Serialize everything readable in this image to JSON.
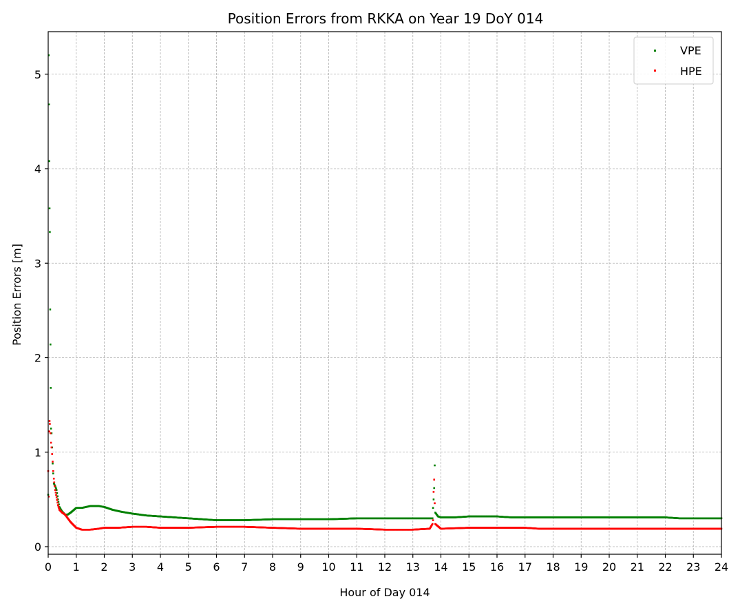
{
  "chart_data": {
    "type": "scatter",
    "title": "Position Errors from RKKA on Year 19 DoY 014",
    "xlabel": "Hour of Day 014",
    "ylabel": "Position Errors [m]",
    "xlim": [
      0,
      24
    ],
    "ylim": [
      -0.08,
      5.45
    ],
    "x_ticks": [
      0,
      1,
      2,
      3,
      4,
      5,
      6,
      7,
      8,
      9,
      10,
      11,
      12,
      13,
      14,
      15,
      16,
      17,
      18,
      19,
      20,
      21,
      22,
      23,
      24
    ],
    "y_ticks": [
      0,
      1,
      2,
      3,
      4,
      5
    ],
    "grid": true,
    "legend_position": "top-right",
    "series": [
      {
        "name": "VPE",
        "color": "#008000",
        "points": [
          [
            0.0,
            0.55
          ],
          [
            0.02,
            5.2
          ],
          [
            0.03,
            4.68
          ],
          [
            0.04,
            4.08
          ],
          [
            0.05,
            3.58
          ],
          [
            0.06,
            3.33
          ],
          [
            0.07,
            2.51
          ],
          [
            0.08,
            2.14
          ],
          [
            0.09,
            1.68
          ],
          [
            0.1,
            1.25
          ],
          [
            0.12,
            1.2
          ],
          [
            0.14,
            1.05
          ],
          [
            0.16,
            0.88
          ],
          [
            0.2,
            0.67
          ],
          [
            0.25,
            0.64
          ],
          [
            0.3,
            0.6
          ],
          [
            0.35,
            0.5
          ],
          [
            0.4,
            0.42
          ],
          [
            0.5,
            0.37
          ],
          [
            0.6,
            0.34
          ],
          [
            0.7,
            0.34
          ],
          [
            0.8,
            0.36
          ],
          [
            1.0,
            0.41
          ],
          [
            1.2,
            0.41
          ],
          [
            1.5,
            0.43
          ],
          [
            1.8,
            0.43
          ],
          [
            2.0,
            0.42
          ],
          [
            2.3,
            0.39
          ],
          [
            2.6,
            0.37
          ],
          [
            3.0,
            0.35
          ],
          [
            3.5,
            0.33
          ],
          [
            4.0,
            0.32
          ],
          [
            4.5,
            0.31
          ],
          [
            5.0,
            0.3
          ],
          [
            5.5,
            0.29
          ],
          [
            6.0,
            0.28
          ],
          [
            7.0,
            0.28
          ],
          [
            8.0,
            0.29
          ],
          [
            9.0,
            0.29
          ],
          [
            10.0,
            0.29
          ],
          [
            11.0,
            0.3
          ],
          [
            12.0,
            0.3
          ],
          [
            13.0,
            0.3
          ],
          [
            13.5,
            0.3
          ],
          [
            13.7,
            0.3
          ],
          [
            13.72,
            0.41
          ],
          [
            13.74,
            0.5
          ],
          [
            13.76,
            0.62
          ],
          [
            13.78,
            0.86
          ],
          [
            13.8,
            0.36
          ],
          [
            13.9,
            0.32
          ],
          [
            14.0,
            0.31
          ],
          [
            14.5,
            0.31
          ],
          [
            15.0,
            0.32
          ],
          [
            15.5,
            0.32
          ],
          [
            16.0,
            0.32
          ],
          [
            16.5,
            0.31
          ],
          [
            17.0,
            0.31
          ],
          [
            18.0,
            0.31
          ],
          [
            19.0,
            0.31
          ],
          [
            20.0,
            0.31
          ],
          [
            21.0,
            0.31
          ],
          [
            22.0,
            0.31
          ],
          [
            22.5,
            0.3
          ],
          [
            23.0,
            0.3
          ],
          [
            24.0,
            0.3
          ]
        ]
      },
      {
        "name": "HPE",
        "color": "#ff0000",
        "points": [
          [
            0.0,
            0.8
          ],
          [
            0.02,
            0.53
          ],
          [
            0.04,
            1.22
          ],
          [
            0.05,
            1.33
          ],
          [
            0.06,
            1.3
          ],
          [
            0.08,
            1.2
          ],
          [
            0.1,
            1.1
          ],
          [
            0.12,
            1.05
          ],
          [
            0.14,
            0.98
          ],
          [
            0.16,
            0.9
          ],
          [
            0.18,
            0.8
          ],
          [
            0.2,
            0.72
          ],
          [
            0.25,
            0.6
          ],
          [
            0.3,
            0.52
          ],
          [
            0.35,
            0.44
          ],
          [
            0.4,
            0.39
          ],
          [
            0.5,
            0.36
          ],
          [
            0.6,
            0.34
          ],
          [
            0.7,
            0.3
          ],
          [
            0.8,
            0.26
          ],
          [
            0.9,
            0.23
          ],
          [
            1.0,
            0.2
          ],
          [
            1.2,
            0.18
          ],
          [
            1.5,
            0.18
          ],
          [
            1.8,
            0.19
          ],
          [
            2.0,
            0.2
          ],
          [
            2.5,
            0.2
          ],
          [
            3.0,
            0.21
          ],
          [
            3.5,
            0.21
          ],
          [
            4.0,
            0.2
          ],
          [
            5.0,
            0.2
          ],
          [
            6.0,
            0.21
          ],
          [
            7.0,
            0.21
          ],
          [
            8.0,
            0.2
          ],
          [
            9.0,
            0.19
          ],
          [
            10.0,
            0.19
          ],
          [
            11.0,
            0.19
          ],
          [
            12.0,
            0.18
          ],
          [
            13.0,
            0.18
          ],
          [
            13.6,
            0.19
          ],
          [
            13.7,
            0.24
          ],
          [
            13.72,
            0.28
          ],
          [
            13.74,
            0.58
          ],
          [
            13.76,
            0.71
          ],
          [
            13.78,
            0.46
          ],
          [
            13.8,
            0.24
          ],
          [
            14.0,
            0.19
          ],
          [
            15.0,
            0.2
          ],
          [
            16.0,
            0.2
          ],
          [
            17.0,
            0.2
          ],
          [
            17.5,
            0.19
          ],
          [
            18.0,
            0.19
          ],
          [
            19.0,
            0.19
          ],
          [
            20.0,
            0.19
          ],
          [
            21.0,
            0.19
          ],
          [
            22.0,
            0.19
          ],
          [
            23.0,
            0.19
          ],
          [
            24.0,
            0.19
          ]
        ]
      }
    ]
  }
}
